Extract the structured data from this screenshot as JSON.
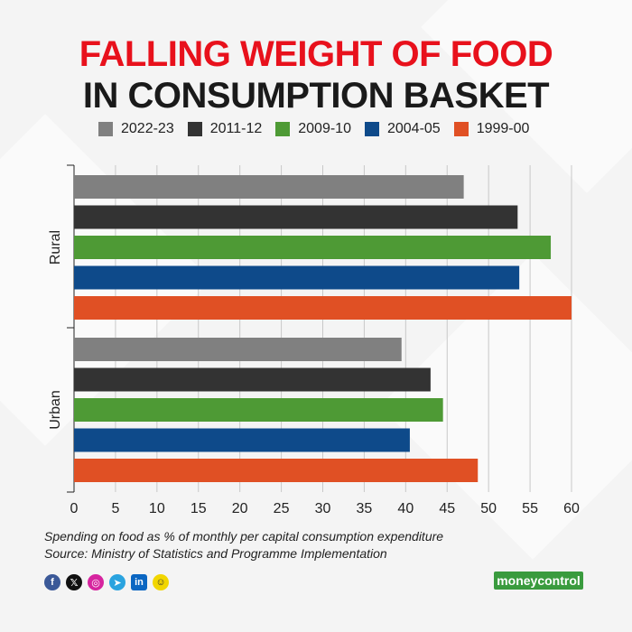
{
  "title_line1": "FALLING WEIGHT OF FOOD",
  "title_line2": "IN CONSUMPTION BASKET",
  "caption_line1": "Spending on food as % of monthly per capital consumption expenditure",
  "caption_line2": "Source: Ministry of Statistics and Programme Implementation",
  "brand": "moneycontrol",
  "social_icons": [
    "facebook-icon",
    "x-icon",
    "instagram-icon",
    "telegram-icon",
    "linkedin-icon",
    "snapchat-icon"
  ],
  "colors": {
    "title_red": "#e8111c",
    "brand_green": "#3a9b3e",
    "series": [
      "#808080",
      "#333333",
      "#4e9a35",
      "#0e4a8a",
      "#e05024"
    ]
  },
  "chart_data": {
    "type": "bar",
    "orientation": "horizontal",
    "categories": [
      "Rural",
      "Urban"
    ],
    "series": [
      {
        "name": "2022-23",
        "values": [
          47.0,
          39.5
        ]
      },
      {
        "name": "2011-12",
        "values": [
          53.5,
          43.0
        ]
      },
      {
        "name": "2009-10",
        "values": [
          57.5,
          44.5
        ]
      },
      {
        "name": "2004-05",
        "values": [
          53.7,
          40.5
        ]
      },
      {
        "name": "1999-00",
        "values": [
          60.0,
          48.7
        ]
      }
    ],
    "xlim": [
      0,
      60
    ],
    "x_ticks": [
      0,
      5,
      10,
      15,
      20,
      25,
      30,
      35,
      40,
      45,
      50,
      55,
      60
    ],
    "grid": true,
    "legend": "top"
  }
}
